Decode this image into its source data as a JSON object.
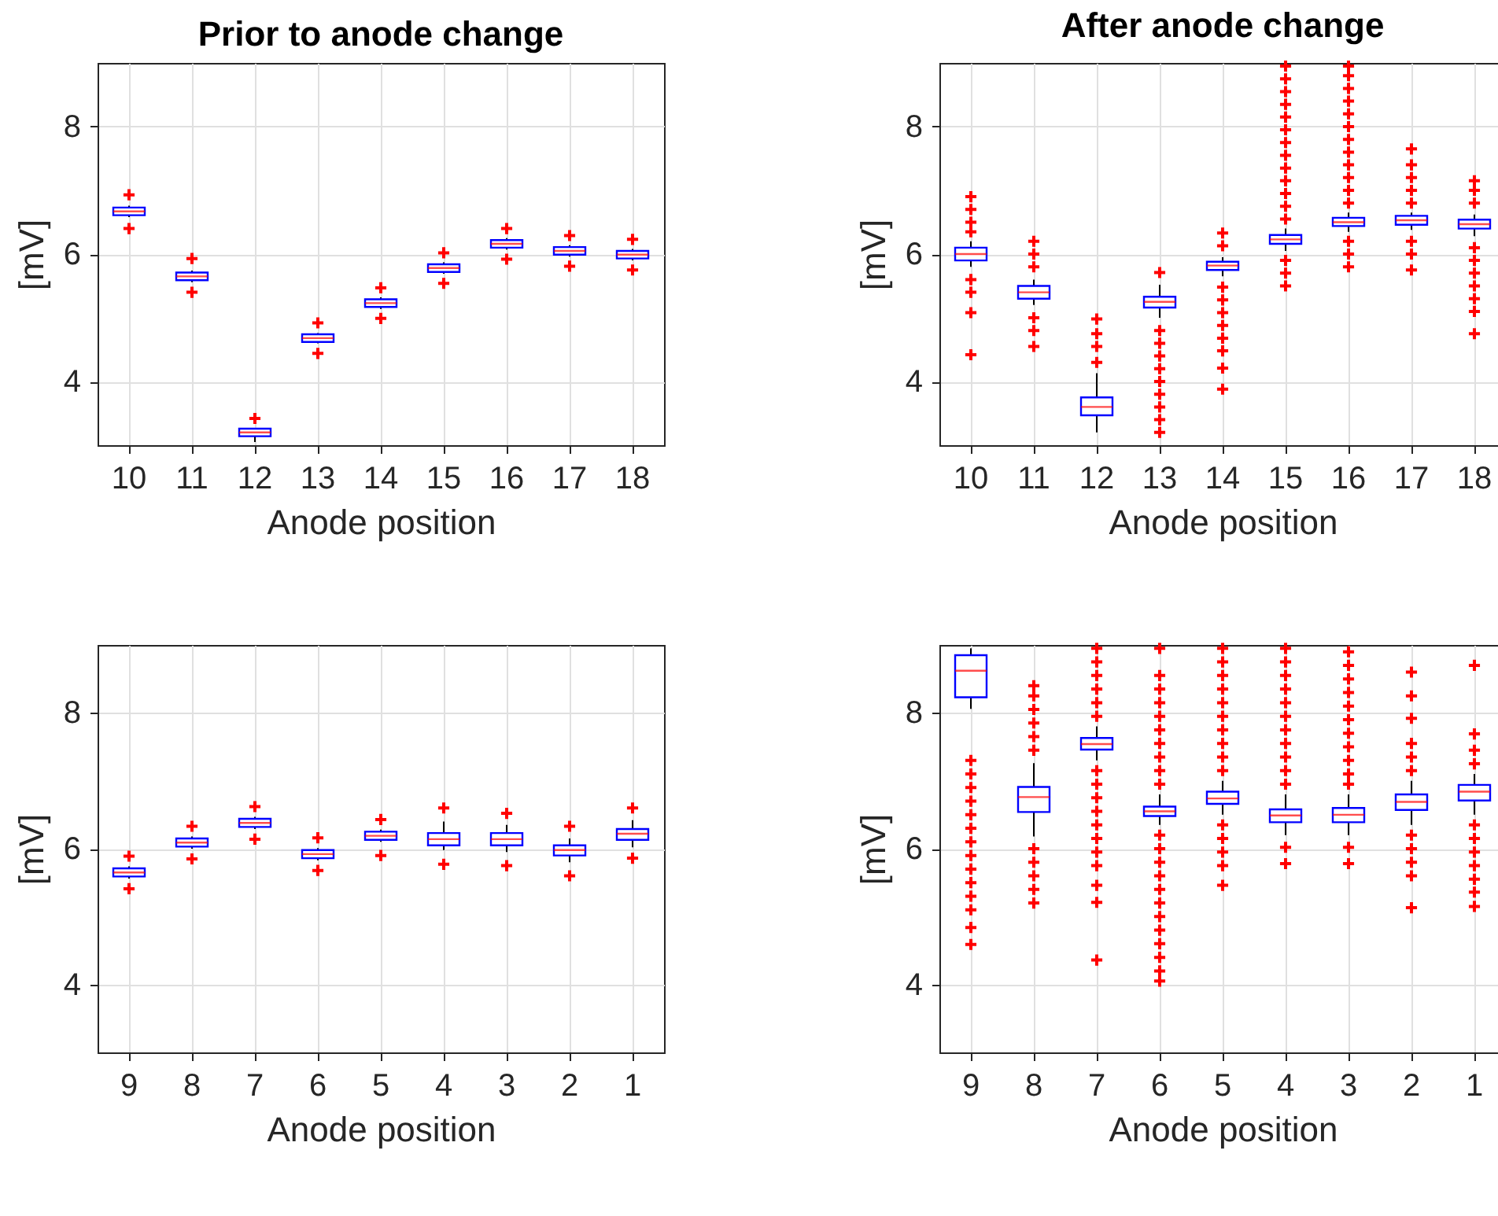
{
  "chart_data": [
    {
      "type": "box",
      "title": "Prior to anode change",
      "xlabel": "Anode position",
      "ylabel": "[mV]",
      "categories": [
        "10",
        "11",
        "12",
        "13",
        "14",
        "15",
        "16",
        "17",
        "18"
      ],
      "ylim": [
        3,
        9
      ],
      "yticks": [
        4,
        6,
        8
      ],
      "grid": true,
      "boxes": [
        {
          "low": 6.58,
          "q1": 6.61,
          "median": 6.67,
          "q3": 6.73,
          "high": 6.76,
          "outliers": [
            6.93,
            6.4
          ]
        },
        {
          "low": 5.56,
          "q1": 5.59,
          "median": 5.65,
          "q3": 5.71,
          "high": 5.74,
          "outliers": [
            5.93,
            5.4
          ]
        },
        {
          "low": 3.05,
          "q1": 3.14,
          "median": 3.2,
          "q3": 3.26,
          "high": 3.27,
          "outliers": [
            3.42
          ]
        },
        {
          "low": 4.6,
          "q1": 4.62,
          "median": 4.68,
          "q3": 4.74,
          "high": 4.76,
          "outliers": [
            4.92,
            4.44
          ]
        },
        {
          "low": 5.14,
          "q1": 5.17,
          "median": 5.23,
          "q3": 5.29,
          "high": 5.32,
          "outliers": [
            5.47,
            4.99
          ]
        },
        {
          "low": 5.69,
          "q1": 5.72,
          "median": 5.78,
          "q3": 5.84,
          "high": 5.87,
          "outliers": [
            6.02,
            5.54
          ]
        },
        {
          "low": 6.07,
          "q1": 6.1,
          "median": 6.16,
          "q3": 6.22,
          "high": 6.25,
          "outliers": [
            6.4,
            5.92
          ]
        },
        {
          "low": 5.96,
          "q1": 5.99,
          "median": 6.05,
          "q3": 6.11,
          "high": 6.14,
          "outliers": [
            6.29,
            5.81
          ]
        },
        {
          "low": 5.9,
          "q1": 5.93,
          "median": 5.99,
          "q3": 6.05,
          "high": 6.08,
          "outliers": [
            6.23,
            5.75
          ]
        }
      ]
    },
    {
      "type": "box",
      "title": "After anode change",
      "xlabel": "Anode position",
      "ylabel": "[mV]",
      "categories": [
        "10",
        "11",
        "12",
        "13",
        "14",
        "15",
        "16",
        "17",
        "18"
      ],
      "ylim": [
        3,
        9
      ],
      "yticks": [
        4,
        6,
        8
      ],
      "grid": true,
      "boxes": [
        {
          "low": 5.8,
          "q1": 5.9,
          "median": 6.0,
          "q3": 6.1,
          "high": 6.2,
          "outliers": [
            6.9,
            6.7,
            6.5,
            6.35,
            5.6,
            5.4,
            5.08,
            4.42
          ]
        },
        {
          "low": 5.2,
          "q1": 5.3,
          "median": 5.4,
          "q3": 5.5,
          "high": 5.6,
          "outliers": [
            6.2,
            6.0,
            5.8,
            5.0,
            4.8,
            4.55
          ]
        },
        {
          "low": 3.2,
          "q1": 3.47,
          "median": 3.6,
          "q3": 3.75,
          "high": 4.13,
          "outliers": [
            4.98,
            4.75,
            4.55,
            4.3
          ]
        },
        {
          "low": 5.0,
          "q1": 5.16,
          "median": 5.25,
          "q3": 5.33,
          "high": 5.52,
          "outliers": [
            5.71,
            4.8,
            4.6,
            4.4,
            4.2,
            4.0,
            3.8,
            3.6,
            3.4,
            3.2
          ]
        },
        {
          "low": 5.65,
          "q1": 5.75,
          "median": 5.82,
          "q3": 5.88,
          "high": 5.95,
          "outliers": [
            6.33,
            6.13,
            5.48,
            5.28,
            5.08,
            4.88,
            4.68,
            4.48,
            4.21,
            3.88
          ]
        },
        {
          "low": 6.05,
          "q1": 6.16,
          "median": 6.23,
          "q3": 6.3,
          "high": 6.4,
          "outliers": [
            8.95,
            8.75,
            8.55,
            8.35,
            8.15,
            7.95,
            7.75,
            7.55,
            7.35,
            7.15,
            6.95,
            6.75,
            6.55,
            5.9,
            5.7,
            5.5
          ]
        },
        {
          "low": 6.35,
          "q1": 6.44,
          "median": 6.5,
          "q3": 6.57,
          "high": 6.65,
          "outliers": [
            8.95,
            8.8,
            8.6,
            8.4,
            8.2,
            8.0,
            7.8,
            7.6,
            7.4,
            7.2,
            7.0,
            6.8,
            6.2,
            6.0,
            5.8
          ]
        },
        {
          "low": 6.38,
          "q1": 6.46,
          "median": 6.53,
          "q3": 6.6,
          "high": 6.65,
          "outliers": [
            7.65,
            7.4,
            7.2,
            7.0,
            6.8,
            6.2,
            6.0,
            5.75
          ]
        },
        {
          "low": 6.28,
          "q1": 6.4,
          "median": 6.47,
          "q3": 6.54,
          "high": 6.62,
          "outliers": [
            7.15,
            7.0,
            6.8,
            6.1,
            5.9,
            5.7,
            5.5,
            5.3,
            5.1,
            4.75
          ]
        }
      ]
    },
    {
      "type": "box",
      "xlabel": "Anode position",
      "ylabel": "[mV]",
      "categories": [
        "9",
        "8",
        "7",
        "6",
        "5",
        "4",
        "3",
        "2",
        "1"
      ],
      "ylim": [
        3,
        9
      ],
      "yticks": [
        4,
        6,
        8
      ],
      "grid": true,
      "boxes": [
        {
          "low": 5.56,
          "q1": 5.59,
          "median": 5.65,
          "q3": 5.71,
          "high": 5.74,
          "outliers": [
            5.89,
            5.41
          ]
        },
        {
          "low": 6.0,
          "q1": 6.03,
          "median": 6.09,
          "q3": 6.15,
          "high": 6.18,
          "outliers": [
            6.33,
            5.85
          ]
        },
        {
          "low": 6.29,
          "q1": 6.32,
          "median": 6.38,
          "q3": 6.44,
          "high": 6.47,
          "outliers": [
            6.62,
            6.14
          ]
        },
        {
          "low": 5.83,
          "q1": 5.86,
          "median": 5.92,
          "q3": 5.98,
          "high": 6.01,
          "outliers": [
            6.16,
            5.68
          ]
        },
        {
          "low": 6.1,
          "q1": 6.13,
          "median": 6.19,
          "q3": 6.25,
          "high": 6.28,
          "outliers": [
            6.43,
            5.9
          ]
        },
        {
          "low": 5.98,
          "q1": 6.05,
          "median": 6.14,
          "q3": 6.23,
          "high": 6.4,
          "outliers": [
            6.6,
            5.77
          ]
        },
        {
          "low": 5.95,
          "q1": 6.05,
          "median": 6.14,
          "q3": 6.23,
          "high": 6.35,
          "outliers": [
            6.52,
            5.75
          ]
        },
        {
          "low": 5.8,
          "q1": 5.9,
          "median": 5.98,
          "q3": 6.05,
          "high": 6.15,
          "outliers": [
            6.33,
            5.6
          ]
        },
        {
          "low": 6.02,
          "q1": 6.13,
          "median": 6.22,
          "q3": 6.29,
          "high": 6.42,
          "outliers": [
            6.6,
            5.86
          ]
        }
      ]
    },
    {
      "type": "box",
      "xlabel": "Anode position",
      "ylabel": "[mV]",
      "categories": [
        "9",
        "8",
        "7",
        "6",
        "5",
        "4",
        "3",
        "2",
        "1"
      ],
      "ylim": [
        3,
        9
      ],
      "yticks": [
        4,
        6,
        8
      ],
      "grid": true,
      "boxes": [
        {
          "low": 8.06,
          "q1": 8.23,
          "median": 8.62,
          "q3": 8.85,
          "high": 8.95,
          "outliers": [
            7.3,
            7.1,
            6.9,
            6.7,
            6.5,
            6.3,
            6.1,
            5.9,
            5.7,
            5.5,
            5.3,
            5.1,
            4.84,
            4.59
          ]
        },
        {
          "low": 6.18,
          "q1": 6.54,
          "median": 6.76,
          "q3": 6.91,
          "high": 7.26,
          "outliers": [
            8.4,
            8.25,
            8.05,
            7.85,
            7.65,
            7.45,
            6.0,
            5.8,
            5.6,
            5.4,
            5.2
          ]
        },
        {
          "low": 7.3,
          "q1": 7.46,
          "median": 7.54,
          "q3": 7.63,
          "high": 7.8,
          "outliers": [
            8.95,
            8.75,
            8.55,
            8.35,
            8.15,
            7.95,
            7.15,
            6.95,
            6.75,
            6.55,
            6.35,
            6.15,
            5.95,
            5.75,
            5.46,
            5.21,
            4.36
          ]
        },
        {
          "low": 6.35,
          "q1": 6.48,
          "median": 6.55,
          "q3": 6.62,
          "high": 6.8,
          "outliers": [
            8.95,
            8.55,
            8.35,
            8.15,
            7.95,
            7.75,
            7.55,
            7.35,
            7.15,
            6.95,
            6.2,
            6.0,
            5.8,
            5.6,
            5.4,
            5.2,
            5.0,
            4.8,
            4.6,
            4.4,
            4.2,
            4.05
          ]
        },
        {
          "low": 6.5,
          "q1": 6.66,
          "median": 6.74,
          "q3": 6.84,
          "high": 7.0,
          "outliers": [
            8.95,
            8.75,
            8.55,
            8.35,
            8.15,
            7.95,
            7.75,
            7.55,
            7.35,
            7.15,
            6.35,
            6.15,
            5.95,
            5.75,
            5.46
          ]
        },
        {
          "low": 6.2,
          "q1": 6.39,
          "median": 6.49,
          "q3": 6.58,
          "high": 6.8,
          "outliers": [
            8.95,
            8.75,
            8.55,
            8.35,
            8.15,
            7.95,
            7.75,
            7.55,
            7.35,
            7.15,
            6.95,
            6.02,
            5.78
          ]
        },
        {
          "low": 6.2,
          "q1": 6.39,
          "median": 6.5,
          "q3": 6.6,
          "high": 6.8,
          "outliers": [
            8.9,
            8.7,
            8.5,
            8.3,
            8.1,
            7.9,
            7.7,
            7.5,
            7.3,
            7.1,
            6.95,
            6.02,
            5.78
          ]
        },
        {
          "low": 6.35,
          "q1": 6.57,
          "median": 6.69,
          "q3": 6.8,
          "high": 7.0,
          "outliers": [
            8.6,
            8.25,
            7.92,
            7.55,
            7.35,
            7.15,
            6.2,
            6.0,
            5.8,
            5.6,
            5.13
          ]
        },
        {
          "low": 6.5,
          "q1": 6.71,
          "median": 6.84,
          "q3": 6.94,
          "high": 7.1,
          "outliers": [
            8.7,
            7.69,
            7.45,
            7.25,
            6.35,
            6.15,
            5.95,
            5.75,
            5.55,
            5.36,
            5.15
          ]
        }
      ]
    }
  ]
}
